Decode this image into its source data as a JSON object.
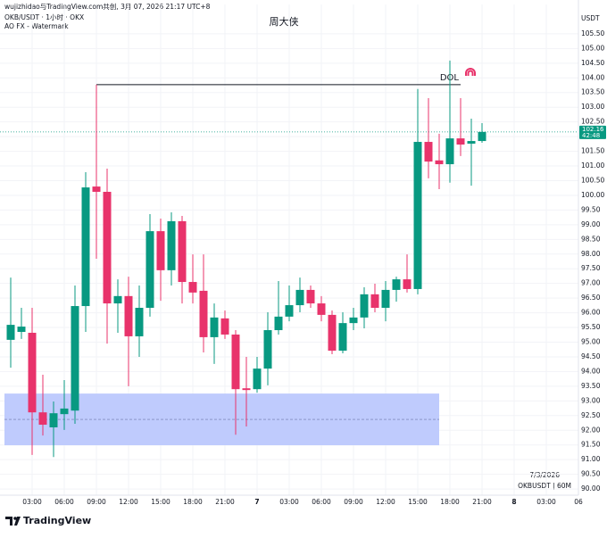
{
  "header": {
    "credit": "wujizhidao与TradingView.com共创, 3月 07, 2026 21:17 UTC+8",
    "symbol": "OKB/USDT · 1小时 · OKX",
    "indicator": "AO FX - Watermark"
  },
  "chart_data": {
    "type": "candlestick",
    "title": "周大侠",
    "y_axis_label": "USDT",
    "categories": [
      null,
      null,
      "03:00",
      null,
      null,
      "06:00",
      null,
      null,
      "09:00",
      null,
      null,
      "12:00",
      null,
      null,
      "15:00",
      null,
      null,
      "18:00",
      null,
      null,
      "21:00",
      null,
      null,
      "7",
      null,
      null,
      "03:00",
      null,
      null,
      "06:00",
      null,
      null,
      "09:00",
      null,
      null,
      "12:00",
      null,
      null,
      "15:00",
      null,
      null,
      "18:00",
      null,
      null,
      "21:00",
      null,
      null,
      "8",
      null,
      null,
      "03:00",
      null,
      null,
      "06"
    ],
    "open": [
      95.08,
      95.35,
      95.32,
      92.61,
      92.1,
      92.55,
      92.67,
      96.23,
      100.3,
      100.12,
      96.32,
      96.57,
      95.2,
      96.17,
      98.78,
      97.45,
      99.12,
      97.05,
      96.75,
      95.17,
      95.81,
      95.26,
      93.43,
      93.4,
      94.1,
      95.41,
      95.87,
      96.26,
      96.78,
      96.32,
      95.93,
      94.71,
      95.65,
      95.84,
      96.63,
      96.17,
      96.78,
      97.14,
      96.81,
      101.82,
      101.19,
      101.06,
      101.94,
      101.76,
      101.85,
      null,
      null,
      null,
      null,
      null,
      null,
      null,
      null,
      null
    ],
    "high": [
      97.2,
      96.17,
      96.17,
      93.89,
      92.98,
      93.71,
      96.93,
      100.79,
      103.77,
      100.91,
      97.14,
      97.23,
      96.93,
      99.36,
      99.21,
      99.42,
      99.3,
      97.99,
      97.99,
      96.32,
      96.08,
      95.41,
      94.5,
      94.5,
      96.02,
      97.08,
      96.93,
      97.2,
      96.93,
      96.57,
      96.08,
      96.02,
      96.17,
      96.87,
      96.99,
      97.08,
      97.23,
      97.99,
      103.62,
      103.31,
      102.1,
      104.59,
      103.31,
      102.61,
      102.46,
      null,
      null,
      null,
      null,
      null,
      null,
      null,
      null,
      null
    ],
    "low": [
      94.13,
      95.11,
      91.16,
      91.82,
      91.09,
      92.01,
      92.22,
      95.35,
      97.84,
      94.95,
      95.32,
      93.5,
      94.5,
      95.87,
      96.41,
      96.93,
      96.32,
      96.32,
      94.65,
      94.26,
      95.11,
      91.85,
      92.13,
      93.28,
      93.53,
      95.26,
      95.71,
      96.02,
      96.17,
      95.71,
      94.59,
      94.62,
      95.41,
      95.47,
      96.02,
      95.71,
      96.38,
      96.69,
      96.63,
      100.58,
      100.21,
      100.43,
      101.34,
      100.33,
      101.79,
      null,
      null,
      null,
      null,
      null,
      null,
      null,
      null,
      null
    ],
    "close": [
      95.59,
      95.53,
      92.61,
      92.19,
      92.58,
      92.74,
      96.23,
      100.27,
      100.12,
      96.32,
      96.57,
      95.2,
      96.17,
      98.78,
      97.45,
      99.12,
      97.05,
      96.69,
      95.17,
      95.84,
      95.26,
      93.4,
      93.37,
      94.1,
      95.41,
      95.87,
      96.26,
      96.78,
      96.32,
      95.93,
      94.71,
      95.65,
      95.84,
      96.63,
      96.17,
      96.78,
      97.14,
      96.81,
      101.82,
      101.15,
      101.06,
      101.94,
      101.73,
      101.85,
      102.16,
      null,
      null,
      null,
      null,
      null,
      null,
      null,
      null,
      null
    ],
    "up_color": "#089981",
    "down_color": "#e8336b",
    "ylim": [
      89.79,
      106.5
    ],
    "yticks": [
      {
        "value": 90,
        "label": "90.00"
      },
      {
        "value": 90.5,
        "label": "90.50"
      },
      {
        "value": 91,
        "label": "91.00"
      },
      {
        "value": 91.5,
        "label": "91.50"
      },
      {
        "value": 92,
        "label": "92.00"
      },
      {
        "value": 92.5,
        "label": "92.50"
      },
      {
        "value": 93,
        "label": "93.00"
      },
      {
        "value": 93.5,
        "label": "93.50"
      },
      {
        "value": 94,
        "label": "94.00"
      },
      {
        "value": 94.5,
        "label": "94.50"
      },
      {
        "value": 95,
        "label": "95.00"
      },
      {
        "value": 95.5,
        "label": "95.50"
      },
      {
        "value": 96,
        "label": "96.00"
      },
      {
        "value": 96.5,
        "label": "96.50"
      },
      {
        "value": 97,
        "label": "97.00"
      },
      {
        "value": 97.5,
        "label": "97.50"
      },
      {
        "value": 98,
        "label": "98.00"
      },
      {
        "value": 98.5,
        "label": "98.50"
      },
      {
        "value": 99,
        "label": "99.00"
      },
      {
        "value": 99.5,
        "label": "99.50"
      },
      {
        "value": 100,
        "label": "100.00"
      },
      {
        "value": 100.5,
        "label": "100.50"
      },
      {
        "value": 101,
        "label": "101.00"
      },
      {
        "value": 101.5,
        "label": "101.50"
      },
      {
        "value": 102,
        "label": "102.00"
      },
      {
        "value": 102.5,
        "label": "102.50"
      },
      {
        "value": 103,
        "label": "103.00"
      },
      {
        "value": 103.5,
        "label": "103.50"
      },
      {
        "value": 104,
        "label": "104.00"
      },
      {
        "value": 104.5,
        "label": "104.50"
      },
      {
        "value": 105,
        "label": "105.00"
      },
      {
        "value": 105.5,
        "label": "105.50"
      }
    ],
    "grid": true,
    "last_price": 102.16,
    "countdown": "42:48",
    "last_price_color": "#089981",
    "level": {
      "text": "DOL",
      "value": 103.77,
      "from": 8,
      "to": 42
    },
    "zone": {
      "top": 93.25,
      "bottom": 91.49,
      "from": 0,
      "to": 40,
      "color": "#bfcbfd"
    },
    "date": "7/3/2026",
    "footer": "OKBUSDT | 60M"
  },
  "logo": "TradingView"
}
